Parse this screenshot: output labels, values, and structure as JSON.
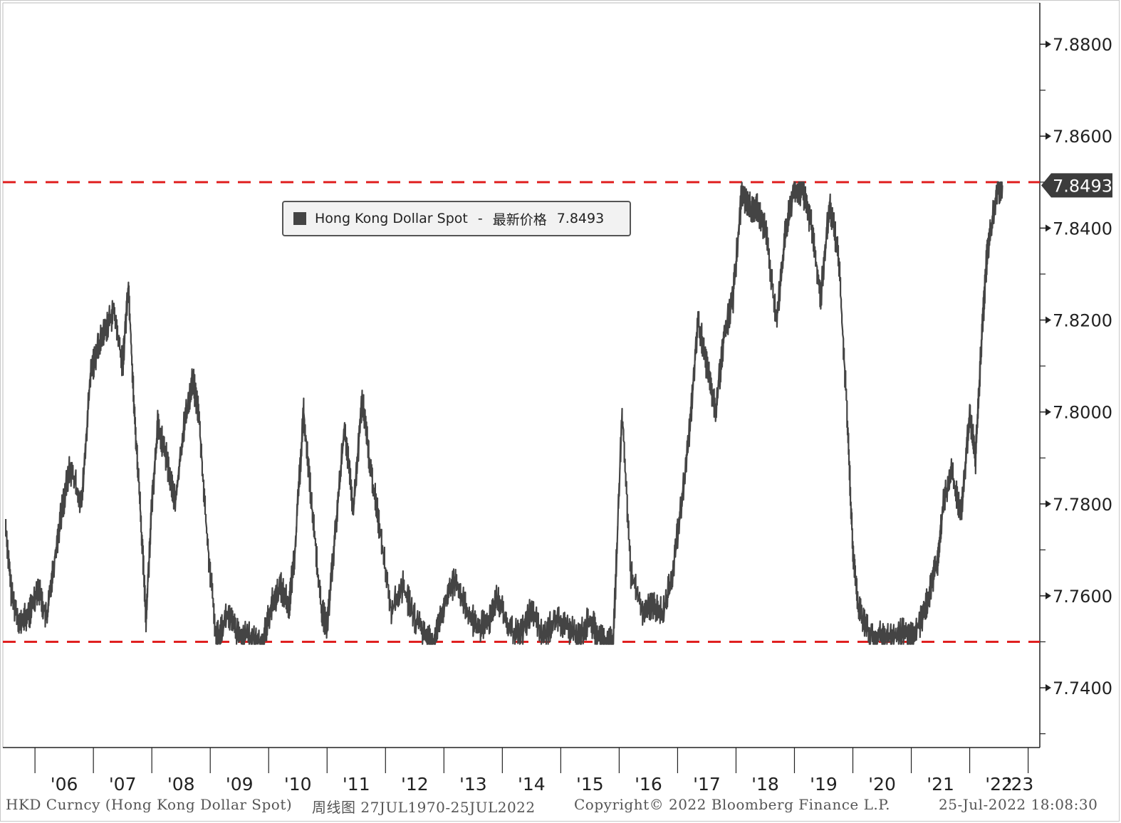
{
  "chart_data": {
    "type": "line",
    "title": "",
    "xlabel": "",
    "ylabel": "",
    "ylim": [
      7.727,
      7.889
    ],
    "y_ticks": [
      "7.8800",
      "7.8600",
      "7.8400",
      "7.8200",
      "7.8000",
      "7.7800",
      "7.7600",
      "7.7400"
    ],
    "x_ticks": [
      "'06",
      "'07",
      "'08",
      "'09",
      "'10",
      "'11",
      "'12",
      "'13",
      "'14",
      "'15",
      "'16",
      "'17",
      "'18",
      "'19",
      "'20",
      "'21",
      "'22",
      "'23"
    ],
    "last_value_badge": "7.8493",
    "reference_lines": [
      {
        "y": 7.85,
        "color": "#e02020",
        "style": "dashed"
      },
      {
        "y": 7.75,
        "color": "#e02020",
        "style": "dashed"
      }
    ],
    "grid": false,
    "legend_position": "top-center",
    "series": [
      {
        "name": "Hong Kong Dollar Spot",
        "color": "#444444",
        "x": [
          2005.5,
          2005.6,
          2005.75,
          2005.9,
          2006.05,
          2006.2,
          2006.3,
          2006.45,
          2006.6,
          2006.8,
          2006.95,
          2007.05,
          2007.2,
          2007.35,
          2007.5,
          2007.6,
          2007.7,
          2007.8,
          2007.9,
          2008.0,
          2008.1,
          2008.25,
          2008.4,
          2008.55,
          2008.7,
          2008.8,
          2008.95,
          2009.1,
          2009.3,
          2009.5,
          2009.7,
          2009.9,
          2010.05,
          2010.2,
          2010.35,
          2010.45,
          2010.6,
          2010.75,
          2010.9,
          2011.0,
          2011.15,
          2011.3,
          2011.45,
          2011.6,
          2011.75,
          2011.9,
          2012.1,
          2012.3,
          2012.5,
          2012.7,
          2012.85,
          2013.0,
          2013.2,
          2013.4,
          2013.6,
          2013.75,
          2013.9,
          2014.1,
          2014.3,
          2014.5,
          2014.7,
          2014.9,
          2015.1,
          2015.3,
          2015.5,
          2015.65,
          2015.8,
          2015.9,
          2016.05,
          2016.2,
          2016.4,
          2016.6,
          2016.75,
          2016.9,
          2017.05,
          2017.2,
          2017.35,
          2017.5,
          2017.65,
          2017.8,
          2017.95,
          2018.1,
          2018.25,
          2018.35,
          2018.5,
          2018.7,
          2018.85,
          2019.0,
          2019.15,
          2019.3,
          2019.45,
          2019.6,
          2019.75,
          2019.9,
          2020.0,
          2020.1,
          2020.3,
          2020.5,
          2020.7,
          2020.9,
          2021.0,
          2021.15,
          2021.3,
          2021.45,
          2021.55,
          2021.7,
          2021.85,
          2022.0,
          2022.1,
          2022.2,
          2022.3,
          2022.45,
          2022.56
        ],
        "values": [
          7.775,
          7.76,
          7.754,
          7.756,
          7.762,
          7.755,
          7.765,
          7.778,
          7.788,
          7.78,
          7.808,
          7.813,
          7.818,
          7.822,
          7.81,
          7.828,
          7.8,
          7.78,
          7.755,
          7.78,
          7.797,
          7.79,
          7.78,
          7.797,
          7.807,
          7.8,
          7.772,
          7.751,
          7.756,
          7.751,
          7.751,
          7.75,
          7.758,
          7.762,
          7.758,
          7.77,
          7.8,
          7.778,
          7.757,
          7.753,
          7.775,
          7.797,
          7.778,
          7.803,
          7.787,
          7.775,
          7.757,
          7.762,
          7.755,
          7.751,
          7.75,
          7.758,
          7.764,
          7.756,
          7.753,
          7.754,
          7.76,
          7.753,
          7.751,
          7.757,
          7.751,
          7.755,
          7.753,
          7.751,
          7.755,
          7.751,
          7.75,
          7.75,
          7.8,
          7.765,
          7.757,
          7.758,
          7.756,
          7.764,
          7.778,
          7.795,
          7.82,
          7.81,
          7.8,
          7.817,
          7.825,
          7.848,
          7.844,
          7.845,
          7.84,
          7.82,
          7.84,
          7.849,
          7.848,
          7.84,
          7.825,
          7.845,
          7.835,
          7.8,
          7.77,
          7.757,
          7.752,
          7.751,
          7.751,
          7.752,
          7.751,
          7.754,
          7.76,
          7.768,
          7.78,
          7.787,
          7.777,
          7.8,
          7.79,
          7.815,
          7.835,
          7.847,
          7.8493
        ]
      }
    ]
  },
  "legend": {
    "series_name": "Hong Kong Dollar Spot",
    "separator": "-",
    "field_label": "最新价格",
    "value": "7.8493"
  },
  "footer": {
    "security": "HKD Curncy (Hong Kong Dollar Spot)",
    "range": "周线图 27JUL1970-25JUL2022",
    "copyright": "Copyright© 2022 Bloomberg Finance L.P.",
    "timestamp": "25-Jul-2022 18:08:30"
  }
}
